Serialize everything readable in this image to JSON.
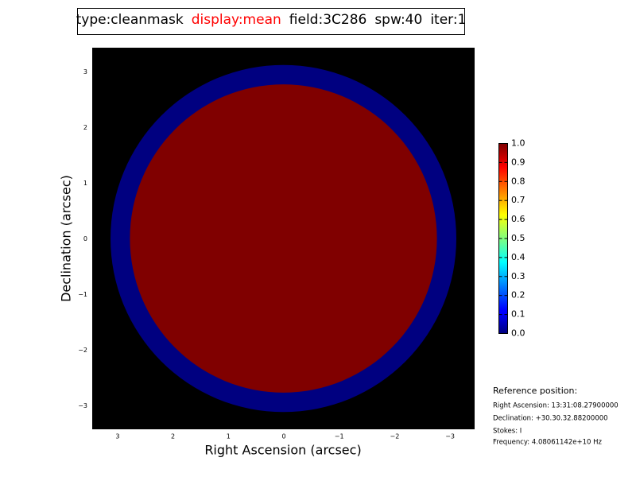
{
  "chart_data": {
    "type": "image",
    "title_parts": [
      {
        "text": "type:cleanmask",
        "color": "#000000"
      },
      {
        "text": "display:mean",
        "color": "#ff0000"
      },
      {
        "text": "field:3C286",
        "color": "#000000"
      },
      {
        "text": "spw:40",
        "color": "#000000"
      },
      {
        "text": "iter:1",
        "color": "#000000"
      }
    ],
    "x_label": "Right Ascension (arcsec)",
    "y_label": "Declination (arcsec)",
    "xlim": [
      3.45,
      -3.45
    ],
    "ylim": [
      -3.43,
      3.43
    ],
    "xticks": [
      3,
      2,
      1,
      0,
      {
        "value": -1,
        "label": "−1"
      },
      {
        "value": -2,
        "label": "−2"
      },
      {
        "value": -3,
        "label": "−3"
      }
    ],
    "yticks": [
      {
        "value": -3,
        "label": "−3"
      },
      {
        "value": -2,
        "label": "−2"
      },
      {
        "value": -1,
        "label": "−1"
      },
      0,
      1,
      2,
      3
    ],
    "background": "#000000",
    "colormap": "jet",
    "regions": [
      {
        "radius": 3.12,
        "value": 0
      },
      {
        "radius": 2.77,
        "value": 1
      }
    ],
    "clim": [
      0,
      1
    ],
    "cticks": [
      {
        "value": 0,
        "label": "0.0"
      },
      {
        "value": 0.1,
        "label": "0.1"
      },
      {
        "value": 0.2,
        "label": "0.2"
      },
      {
        "value": 0.3,
        "label": "0.3"
      },
      {
        "value": 0.4,
        "label": "0.4"
      },
      {
        "value": 0.5,
        "label": "0.5"
      },
      {
        "value": 0.6,
        "label": "0.6"
      },
      {
        "value": 0.7,
        "label": "0.7"
      },
      {
        "value": 0.8,
        "label": "0.8"
      },
      {
        "value": 0.9,
        "label": "0.9"
      },
      {
        "value": 1,
        "label": "1.0"
      }
    ],
    "annotations": [
      "Reference position:",
      "Right Ascension: 13:31:08.27900000",
      "Declination: +30.30.32.88200000",
      "Stokes: I",
      "Frequency: 4.08061142e+10 Hz"
    ]
  }
}
